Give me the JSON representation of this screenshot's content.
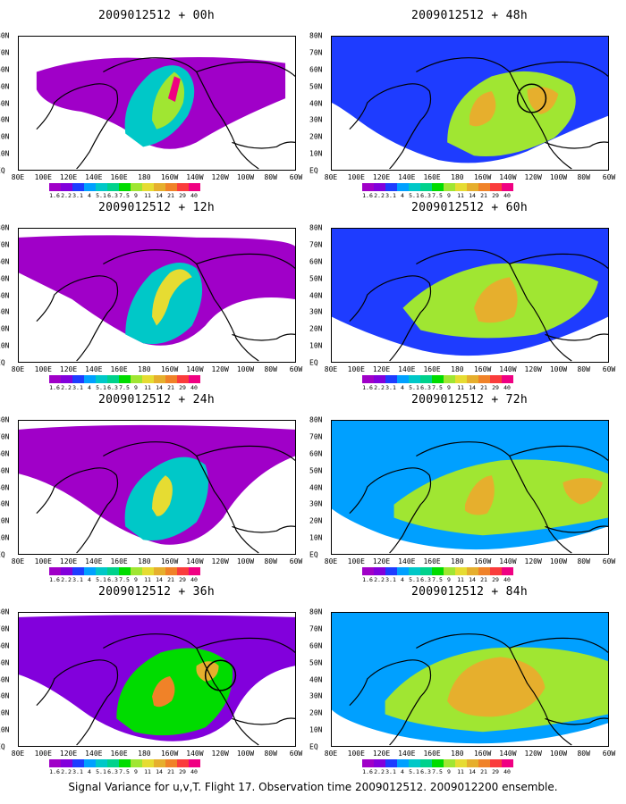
{
  "caption": "Signal Variance for u,v,T. Flight 17. Observation time 2009012512. 2009012200 ensemble.",
  "y_tick_labels": [
    "80N",
    "70N",
    "60N",
    "50N",
    "40N",
    "30N",
    "20N",
    "10N",
    "EQ"
  ],
  "x_tick_labels": [
    "80E",
    "100E",
    "120E",
    "140E",
    "160E",
    "180",
    "160W",
    "140W",
    "120W",
    "100W",
    "80W",
    "60W"
  ],
  "colorbar": {
    "levels": [
      "1.6",
      "2.2",
      "3.1",
      "4",
      "5.1",
      "6.3",
      "7.5",
      "9",
      "11",
      "14",
      "21",
      "29",
      "40"
    ],
    "colors": [
      "#a000c8",
      "#8200dc",
      "#1e3cff",
      "#00a0ff",
      "#00c8c8",
      "#00d28c",
      "#00dc00",
      "#a0e632",
      "#e6dc32",
      "#e6af2d",
      "#f08228",
      "#fa3c3c",
      "#f00082"
    ]
  },
  "chart_data": [
    {
      "type": "heatmap",
      "title": "2009012512 + 00h",
      "lead_hours": 0,
      "xlim": [
        "80E",
        "60W"
      ],
      "ylim": [
        "EQ",
        "80N"
      ],
      "peak_value_class": "40",
      "circle_marker": false,
      "regions": [
        {
          "value": 1.6,
          "note": "broad low variance over N Pacific"
        },
        {
          "value": 5.1,
          "note": "plume 180-150W, 25-60N"
        },
        {
          "value": 9,
          "note": "core near 160W, 45-55N"
        },
        {
          "value": 40,
          "note": "small max near 155W 50N (red contour)"
        }
      ]
    },
    {
      "type": "heatmap",
      "title": "2009012512 + 12h",
      "lead_hours": 12,
      "xlim": [
        "80E",
        "60W"
      ],
      "ylim": [
        "EQ",
        "80N"
      ],
      "peak_value_class": "11",
      "circle_marker": false,
      "regions": [
        {
          "value": 1.6,
          "note": "N Pacific / Alaska background"
        },
        {
          "value": 5.1,
          "note": "arc 170E-140W, 25-60N"
        },
        {
          "value": 11,
          "note": "core arc near 160W-150W"
        }
      ]
    },
    {
      "type": "heatmap",
      "title": "2009012512 + 24h",
      "lead_hours": 24,
      "xlim": [
        "80E",
        "60W"
      ],
      "ylim": [
        "EQ",
        "80N"
      ],
      "peak_value_class": "11",
      "circle_marker": false,
      "regions": [
        {
          "value": 1.6,
          "note": "broad background"
        },
        {
          "value": 5.1,
          "note": "arc 170E-130W"
        },
        {
          "value": 11,
          "note": "max near 165W 40N"
        }
      ]
    },
    {
      "type": "heatmap",
      "title": "2009012512 + 36h",
      "lead_hours": 36,
      "xlim": [
        "80E",
        "60W"
      ],
      "ylim": [
        "EQ",
        "80N"
      ],
      "peak_value_class": "21",
      "circle_marker": true,
      "regions": [
        {
          "value": 2.2,
          "note": "background across Pacific"
        },
        {
          "value": 7.5,
          "note": "band 170E-120W"
        },
        {
          "value": 21,
          "note": "max near 165W 35N"
        },
        {
          "value": 14,
          "note": "near 140W 50N"
        }
      ]
    },
    {
      "type": "heatmap",
      "title": "2009012512 + 48h",
      "lead_hours": 48,
      "xlim": [
        "80E",
        "60W"
      ],
      "ylim": [
        "EQ",
        "80N"
      ],
      "peak_value_class": "14",
      "circle_marker": true,
      "regions": [
        {
          "value": 3.1,
          "note": "background 100E-60W"
        },
        {
          "value": 9,
          "note": "broad area 160W-100W"
        },
        {
          "value": 14,
          "note": "max near 150W 40N and 120W 45N"
        }
      ]
    },
    {
      "type": "heatmap",
      "title": "2009012512 + 60h",
      "lead_hours": 60,
      "xlim": [
        "80E",
        "60W"
      ],
      "ylim": [
        "EQ",
        "80N"
      ],
      "peak_value_class": "14",
      "circle_marker": false,
      "regions": [
        {
          "value": 3.1,
          "note": "background"
        },
        {
          "value": 9,
          "note": "band 160E-80W"
        },
        {
          "value": 14,
          "note": "max near 140W 40N"
        }
      ]
    },
    {
      "type": "heatmap",
      "title": "2009012512 + 72h",
      "lead_hours": 72,
      "xlim": [
        "80E",
        "60W"
      ],
      "ylim": [
        "EQ",
        "80N"
      ],
      "peak_value_class": "14",
      "circle_marker": false,
      "regions": [
        {
          "value": 4,
          "note": "background"
        },
        {
          "value": 9,
          "note": "band 160E-60W"
        },
        {
          "value": 14,
          "note": "maxima near 160W 40N and 80W 40N"
        }
      ]
    },
    {
      "type": "heatmap",
      "title": "2009012512 + 84h",
      "lead_hours": 84,
      "xlim": [
        "80E",
        "60W"
      ],
      "ylim": [
        "EQ",
        "80N"
      ],
      "peak_value_class": "14",
      "circle_marker": false,
      "regions": [
        {
          "value": 4,
          "note": "background"
        },
        {
          "value": 9,
          "note": "broad band 140E-60W"
        },
        {
          "value": 14,
          "note": "large max 160W-120W, 25-50N"
        }
      ]
    }
  ]
}
